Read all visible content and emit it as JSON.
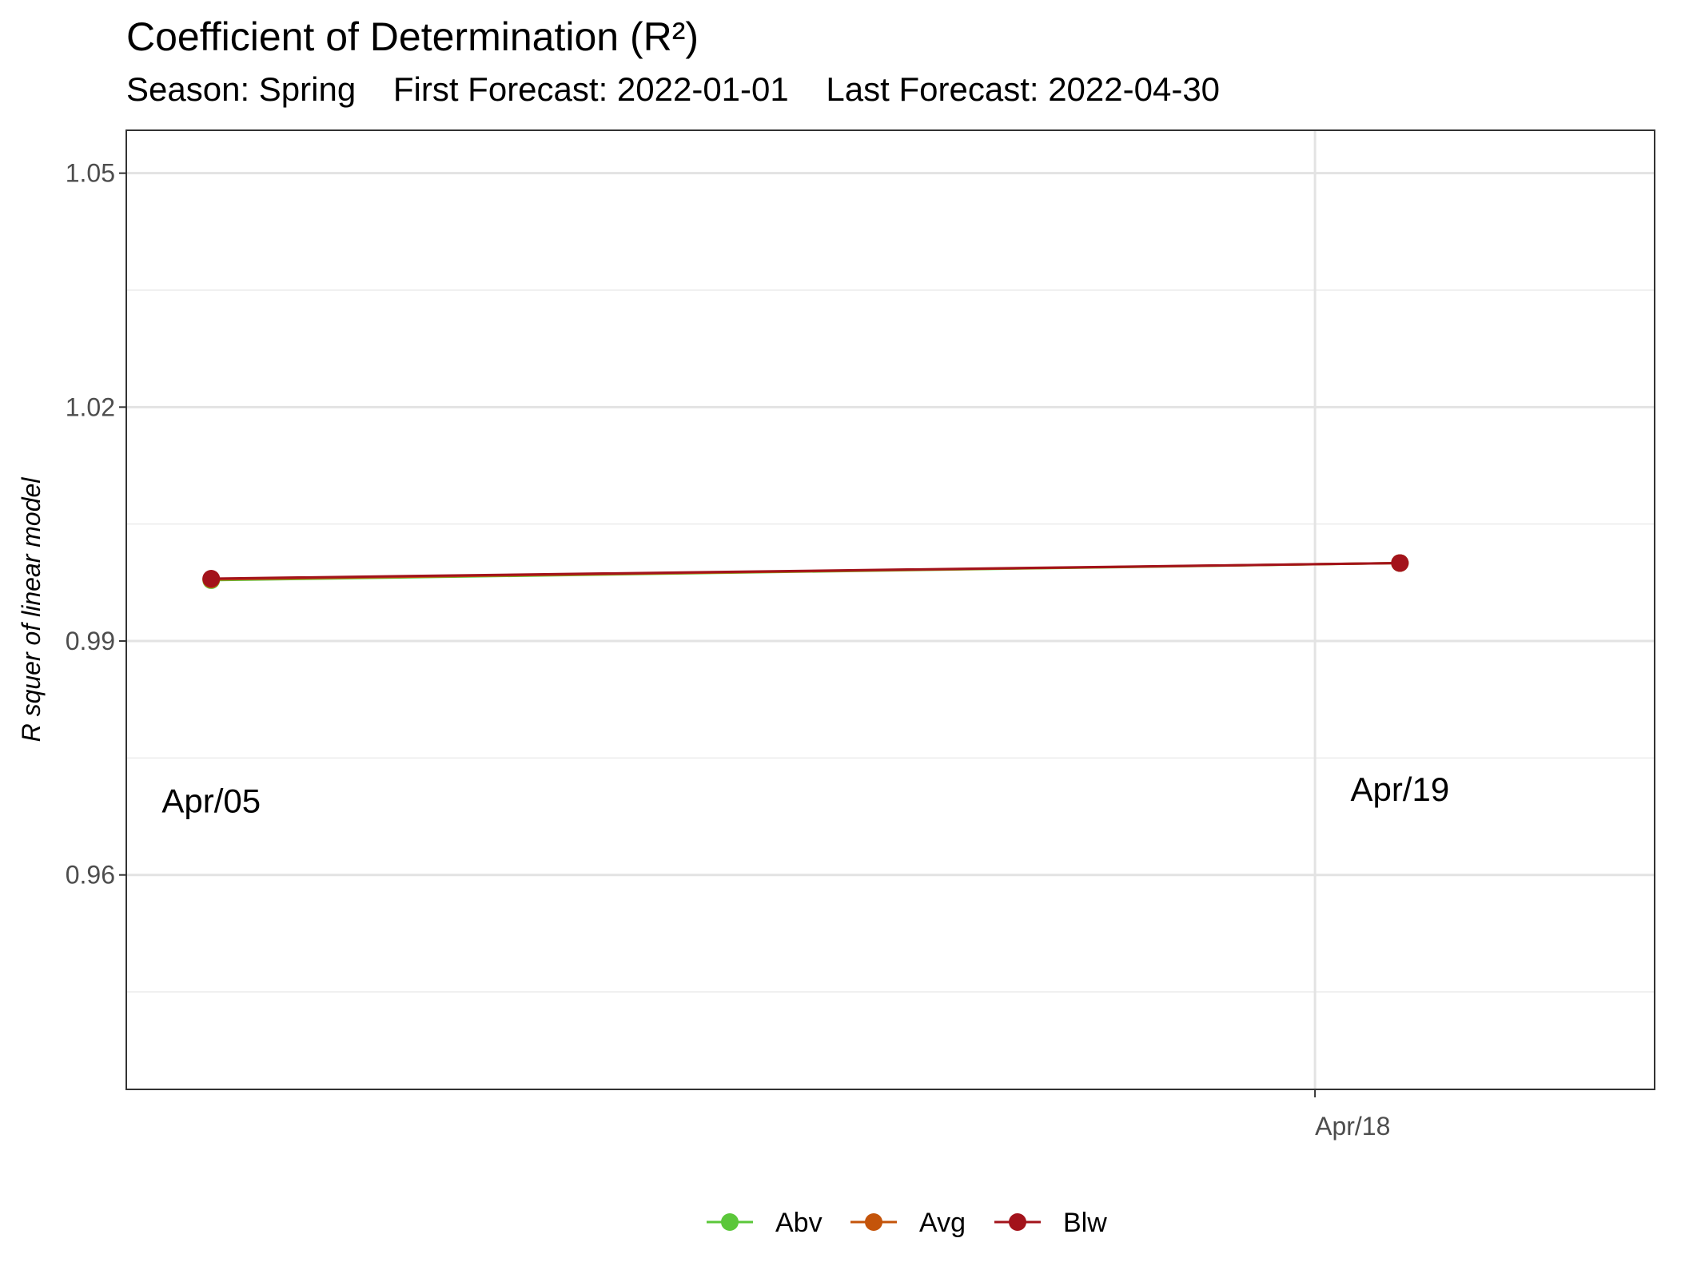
{
  "chart_data": {
    "type": "line",
    "title": "Coefficient of Determination (R²)",
    "subtitle": "Season: Spring    First Forecast: 2022-01-01    Last Forecast: 2022-04-30",
    "xlabel": "",
    "ylabel": "R squer of linear model",
    "x_tick_labels": [
      "Apr/18"
    ],
    "x_tick_dates": [
      "2022-04-18"
    ],
    "xlim": [
      "2022-04-04",
      "2022-04-22"
    ],
    "y_ticks": [
      0.96,
      0.99,
      1.02,
      1.05
    ],
    "y_tick_labels": [
      "0.96",
      "0.99",
      "1.02",
      "1.05"
    ],
    "ylim": [
      0.9325,
      1.0555
    ],
    "grid": true,
    "legend_position": "bottom",
    "x": [
      "2022-04-05",
      "2022-04-19"
    ],
    "series": [
      {
        "name": "Abv",
        "color": "#5bc73a",
        "values": [
          0.9978,
          1.0
        ]
      },
      {
        "name": "Avg",
        "color": "#c4540a",
        "values": [
          0.9979,
          1.0
        ]
      },
      {
        "name": "Blw",
        "color": "#a3131b",
        "values": [
          0.998,
          1.0
        ]
      }
    ],
    "annotations": [
      {
        "text": "Apr/05",
        "x": "2022-04-05",
        "y": 0.968
      },
      {
        "text": "Apr/19",
        "x": "2022-04-19",
        "y": 0.9695
      }
    ]
  }
}
